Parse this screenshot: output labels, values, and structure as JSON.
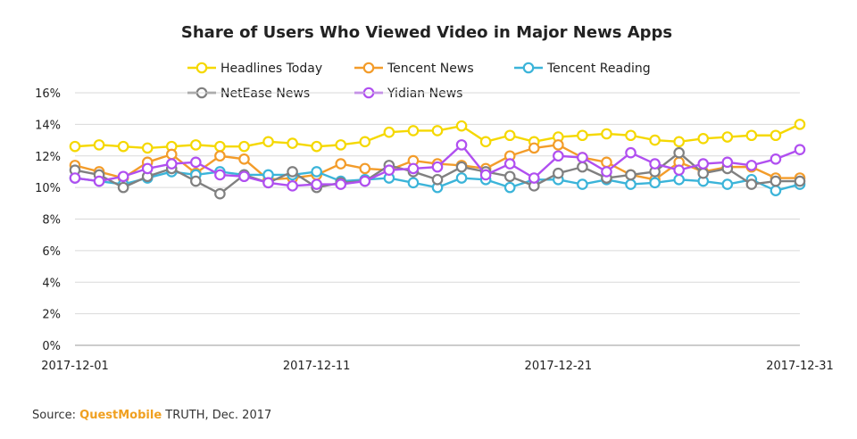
{
  "chart_data": {
    "type": "line",
    "title": "Share of Users Who Viewed Video in Major News Apps",
    "xlabel": "",
    "ylabel": "",
    "ylim": [
      0,
      16
    ],
    "yticks": [
      0,
      2,
      4,
      6,
      8,
      10,
      12,
      14,
      16
    ],
    "ytick_suffix": "%",
    "xtick_labels": [
      "2017-12-01",
      "2017-12-11",
      "2017-12-21",
      "2017-12-31"
    ],
    "xtick_index": [
      0,
      10,
      20,
      30
    ],
    "grid": "horizontal",
    "legend_position": "top",
    "x": [
      "2017-12-01",
      "2017-12-02",
      "2017-12-03",
      "2017-12-04",
      "2017-12-05",
      "2017-12-06",
      "2017-12-07",
      "2017-12-08",
      "2017-12-09",
      "2017-12-10",
      "2017-12-11",
      "2017-12-12",
      "2017-12-13",
      "2017-12-14",
      "2017-12-15",
      "2017-12-16",
      "2017-12-17",
      "2017-12-18",
      "2017-12-19",
      "2017-12-20",
      "2017-12-21",
      "2017-12-22",
      "2017-12-23",
      "2017-12-24",
      "2017-12-25",
      "2017-12-26",
      "2017-12-27",
      "2017-12-28",
      "2017-12-29",
      "2017-12-30",
      "2017-12-31"
    ],
    "series": [
      {
        "name": "Headlines Today",
        "color": "#f5d800",
        "values": [
          12.6,
          12.7,
          12.6,
          12.5,
          12.6,
          12.7,
          12.6,
          12.6,
          12.9,
          12.8,
          12.6,
          12.7,
          12.9,
          13.5,
          13.6,
          13.6,
          13.9,
          12.9,
          13.3,
          12.9,
          13.2,
          13.3,
          13.4,
          13.3,
          13.0,
          12.9,
          13.1,
          13.2,
          13.3,
          13.3,
          14.0
        ]
      },
      {
        "name": "Tencent News",
        "color": "#f39c2a",
        "values": [
          11.4,
          11.0,
          10.6,
          11.6,
          12.1,
          10.9,
          12.0,
          11.8,
          10.5,
          10.6,
          10.8,
          11.5,
          11.2,
          11.1,
          11.7,
          11.5,
          11.4,
          11.2,
          12.0,
          12.5,
          12.7,
          11.9,
          11.6,
          10.8,
          10.5,
          11.6,
          11.0,
          11.3,
          11.3,
          10.6,
          10.6
        ]
      },
      {
        "name": "Tencent Reading",
        "color": "#3bb4d9",
        "values": [
          10.6,
          10.4,
          10.2,
          10.6,
          11.0,
          10.8,
          11.0,
          10.8,
          10.8,
          10.8,
          11.0,
          10.4,
          10.5,
          10.6,
          10.3,
          10.0,
          10.6,
          10.5,
          10.0,
          10.5,
          10.5,
          10.2,
          10.5,
          10.2,
          10.3,
          10.5,
          10.4,
          10.2,
          10.5,
          9.8,
          10.2
        ]
      },
      {
        "name": "NetEase News",
        "color": "#808080",
        "values": [
          11.1,
          10.8,
          10.0,
          10.7,
          11.2,
          10.4,
          9.6,
          10.8,
          10.3,
          11.0,
          10.0,
          10.3,
          10.4,
          11.4,
          11.0,
          10.5,
          11.3,
          11.0,
          10.7,
          10.1,
          10.9,
          11.3,
          10.6,
          10.8,
          11.0,
          12.2,
          10.9,
          11.2,
          10.2,
          10.4,
          10.4
        ]
      },
      {
        "name": "Yidian News",
        "color": "#b04ff0",
        "values": [
          10.6,
          10.4,
          10.7,
          11.2,
          11.5,
          11.6,
          10.8,
          10.7,
          10.3,
          10.1,
          10.2,
          10.2,
          10.4,
          11.1,
          11.2,
          11.3,
          12.7,
          10.8,
          11.5,
          10.6,
          12.0,
          11.9,
          11.0,
          12.2,
          11.5,
          11.1,
          11.5,
          11.6,
          11.4,
          11.8,
          12.4
        ]
      }
    ]
  },
  "source": {
    "prefix": "Source: ",
    "brand": "QuestMobile",
    "suffix": " TRUTH, Dec. 2017"
  }
}
